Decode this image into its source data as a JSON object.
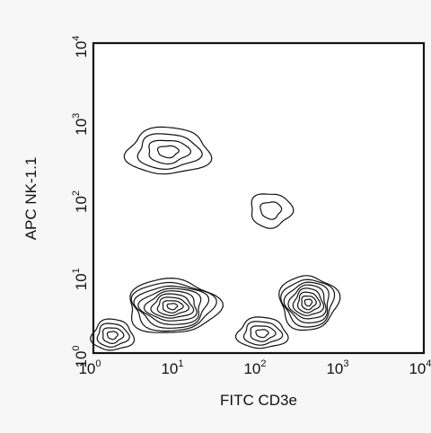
{
  "chart_data": {
    "type": "contour",
    "xlabel": "FITC CD3e",
    "ylabel": "APC NK-1.1",
    "xscale": "log",
    "yscale": "log",
    "xlim": [
      1,
      10000
    ],
    "ylim": [
      1,
      10000
    ],
    "x_ticks": [
      {
        "value": 1,
        "base": "10",
        "exp": "0"
      },
      {
        "value": 10,
        "base": "10",
        "exp": "1"
      },
      {
        "value": 100,
        "base": "10",
        "exp": "2"
      },
      {
        "value": 1000,
        "base": "10",
        "exp": "3"
      },
      {
        "value": 10000,
        "base": "10",
        "exp": "4"
      }
    ],
    "y_ticks": [
      {
        "value": 1,
        "base": "10",
        "exp": "0"
      },
      {
        "value": 10,
        "base": "10",
        "exp": "1"
      },
      {
        "value": 100,
        "base": "10",
        "exp": "2"
      },
      {
        "value": 1000,
        "base": "10",
        "exp": "3"
      },
      {
        "value": 10000,
        "base": "10",
        "exp": "4"
      }
    ],
    "grid": false,
    "populations": [
      {
        "id": "nk-cells",
        "center": [
          8,
          400
        ],
        "spread": [
          0.5,
          0.3
        ],
        "levels": 4
      },
      {
        "id": "nkt-cells",
        "center": [
          140,
          70
        ],
        "spread": [
          0.25,
          0.22
        ],
        "levels": 2
      },
      {
        "id": "double-negative-main",
        "center": [
          9,
          4
        ],
        "spread": [
          0.55,
          0.35
        ],
        "levels": 9
      },
      {
        "id": "double-negative-low",
        "center": [
          1.7,
          1.7
        ],
        "spread": [
          0.25,
          0.2
        ],
        "levels": 4
      },
      {
        "id": "t-cells",
        "center": [
          400,
          4.5
        ],
        "spread": [
          0.35,
          0.35
        ],
        "levels": 8
      },
      {
        "id": "t-cells-low",
        "center": [
          110,
          1.8
        ],
        "spread": [
          0.3,
          0.2
        ],
        "levels": 4
      }
    ]
  }
}
